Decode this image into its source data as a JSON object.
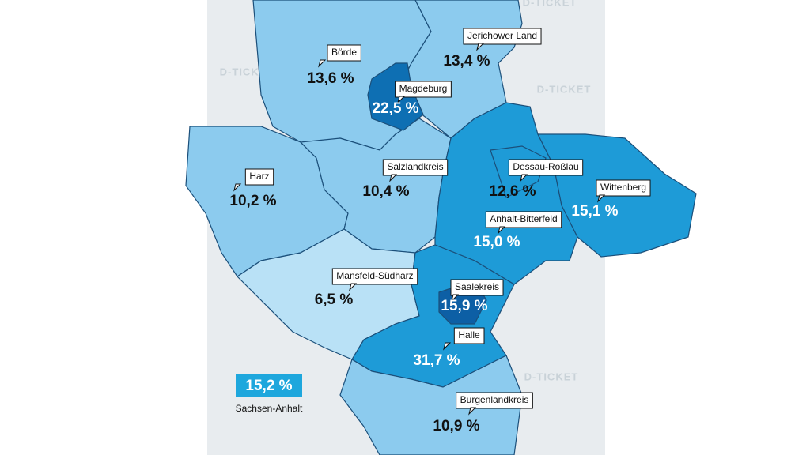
{
  "watermark": "D-TICKET",
  "summary": {
    "share": "15,2 %",
    "name": "Sachsen-Anhalt",
    "color": "#1ea7dd"
  },
  "regions": [
    {
      "name": "Börde",
      "share": "13,6 %",
      "color": "#8ccbee"
    },
    {
      "name": "Jerichower Land",
      "share": "13,4 %",
      "color": "#8ccbee"
    },
    {
      "name": "Harz",
      "share": "10,2 %",
      "color": "#8ccbee"
    },
    {
      "name": "Salzlandkreis",
      "share": "10,4 %",
      "color": "#8ccbee"
    },
    {
      "name": "Anhalt-Bitterfeld",
      "share": "15,0 %",
      "color": "#1e9bd7"
    },
    {
      "name": "Wittenberg",
      "share": "15,1 %",
      "color": "#1e9bd7"
    },
    {
      "name": "Dessau-Roßlau",
      "share": "12,6 %",
      "color": "#1e9bd7"
    },
    {
      "name": "Magdeburg",
      "share": "22,5 %",
      "color": "#0e6fb3"
    },
    {
      "name": "Mansfeld-Südharz",
      "share": "6,5 %",
      "color": "#b9e1f6"
    },
    {
      "name": "Saalekreis",
      "share": "15,9 %",
      "color": "#1e9bd7"
    },
    {
      "name": "Halle",
      "share": "31,7 %",
      "color": "#0d5fa5"
    },
    {
      "name": "Burgenlandkreis",
      "share": "10,9 %",
      "color": "#8ccbee"
    }
  ]
}
